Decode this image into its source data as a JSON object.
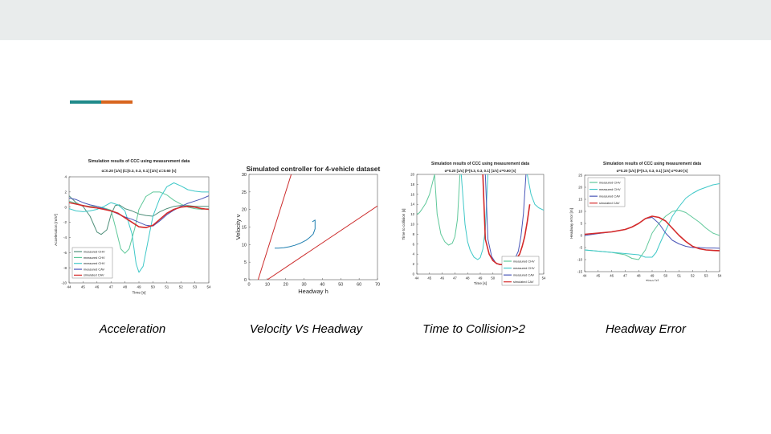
{
  "slide": {
    "captions": [
      "Acceleration",
      "Velocity Vs Headway",
      "Time to Collision>2",
      "Headway Error"
    ],
    "accent_colors": [
      "#1f8a8a",
      "#d8651e"
    ]
  },
  "chart_data": [
    {
      "type": "line",
      "title": "Simulation results of CCC using measurement data",
      "subtitle": "α=0.20 [1/s]   β=[0.3, 0.3, 0.1] [1/s]   σ=0.60 [s]",
      "xlabel": "Time [s]",
      "ylabel": "Acceleration [m/s²]",
      "xlim": [
        44,
        54
      ],
      "ylim": [
        -10,
        4
      ],
      "xticks": [
        "44",
        "45",
        "46",
        "47",
        "48",
        "49",
        "50",
        "51",
        "52",
        "53",
        "54"
      ],
      "yticks": [
        "4",
        "2",
        "0",
        "-2",
        "-4",
        "-6",
        "-8",
        "-10"
      ],
      "legend_position": "bottom-left",
      "series": [
        {
          "name": "measured CHV",
          "color": "#4f8f7a",
          "x": [
            44,
            44.5,
            45,
            45.5,
            46,
            46.3,
            46.7,
            47,
            47.3,
            47.6,
            48,
            48.5,
            49,
            49.5,
            50,
            50.5,
            51,
            51.5,
            52,
            52.5,
            53,
            53.5,
            54
          ],
          "y": [
            1.5,
            0.6,
            0.1,
            -1.2,
            -3.3,
            -3.6,
            -3,
            -1,
            0.2,
            0.3,
            -0.2,
            -0.5,
            -0.9,
            -1.1,
            -1.2,
            -0.6,
            -0.2,
            0.1,
            0.2,
            0.2,
            0.1,
            0.1,
            0.1
          ]
        },
        {
          "name": "measured CHV",
          "color": "#5fc89a",
          "x": [
            44,
            44.5,
            45,
            45.5,
            46,
            46.5,
            47,
            47.3,
            47.7,
            48,
            48.3,
            48.7,
            49,
            49.5,
            50,
            50.5,
            51,
            51.5,
            52,
            52.5,
            53,
            53.5,
            54
          ],
          "y": [
            0.8,
            0.5,
            0.2,
            0.1,
            0.1,
            -0.1,
            -0.4,
            -2.5,
            -5.5,
            -6.1,
            -5.5,
            -2.8,
            -0.3,
            1.4,
            2,
            2,
            1.6,
            0.9,
            0.4,
            0,
            -0.2,
            -0.3,
            -0.2
          ]
        },
        {
          "name": "measured CHV",
          "color": "#3fc8c8",
          "x": [
            44,
            44.5,
            45,
            45.5,
            46,
            46.5,
            47,
            47.5,
            48,
            48.5,
            48.8,
            49,
            49.3,
            49.7,
            50,
            50.5,
            51,
            51.5,
            52,
            52.5,
            53,
            53.5,
            54
          ],
          "y": [
            -0.2,
            -0.5,
            -0.6,
            -0.5,
            -0.3,
            0.1,
            0.6,
            0.3,
            -0.5,
            -3.5,
            -7.5,
            -8.6,
            -7.8,
            -4,
            -1.2,
            1.2,
            2.7,
            3.2,
            2.8,
            2.3,
            2.1,
            2,
            2
          ]
        },
        {
          "name": "measured CAV",
          "color": "#4a56b8",
          "x": [
            44,
            44.5,
            45,
            45.5,
            46,
            46.5,
            47,
            47.5,
            48,
            48.5,
            49,
            49.5,
            50,
            50.5,
            51,
            51.5,
            52,
            52.5,
            53,
            53.5,
            54
          ],
          "y": [
            1.2,
            1,
            0.6,
            0.3,
            0.1,
            -0.2,
            -0.5,
            -0.9,
            -1.3,
            -1.6,
            -2,
            -2.4,
            -2.5,
            -1.8,
            -1,
            -0.4,
            0.1,
            0.5,
            0.8,
            1.1,
            1.5
          ]
        },
        {
          "name": "simulated CAV",
          "color": "#d42a2a",
          "x": [
            44,
            44.5,
            45,
            45.5,
            46,
            46.5,
            47,
            47.5,
            48,
            48.5,
            49,
            49.5,
            50,
            50.5,
            51,
            51.5,
            52,
            52.5,
            53,
            53.5,
            54
          ],
          "y": [
            0.6,
            0.4,
            0.2,
            0,
            -0.1,
            -0.3,
            -0.5,
            -0.8,
            -1.4,
            -2,
            -2.6,
            -2.7,
            -2.4,
            -1.6,
            -0.8,
            -0.3,
            0,
            0.1,
            0,
            -0.2,
            -0.3
          ]
        }
      ]
    },
    {
      "type": "line",
      "title": "Simulated controller for 4-vehicle dataset",
      "xlabel": "Headway h",
      "ylabel": "Velocity v",
      "xlim": [
        0,
        70
      ],
      "ylim": [
        0,
        30
      ],
      "xticks": [
        "0",
        "10",
        "20",
        "30",
        "40",
        "50",
        "60",
        "70"
      ],
      "yticks": [
        "30",
        "25",
        "20",
        "15",
        "10",
        "5",
        "0"
      ],
      "series": [
        {
          "color": "#cc2b2b",
          "x": [
            5,
            23
          ],
          "y": [
            0,
            30
          ]
        },
        {
          "color": "#cc2b2b",
          "x": [
            10,
            70
          ],
          "y": [
            0,
            21
          ]
        },
        {
          "color": "#1f7fb0",
          "x": [
            14,
            16,
            19,
            22,
            25,
            28,
            31,
            33,
            35,
            36,
            36,
            34.5
          ],
          "y": [
            9,
            9,
            9.1,
            9.4,
            9.8,
            10.4,
            11.2,
            12,
            13,
            14.5,
            17,
            16.5
          ]
        }
      ]
    },
    {
      "type": "line",
      "title": "Simulation results of CCC using measurement data",
      "subtitle": "α=0.20 [1/s]   β=[0.3, 0.3, 0.1] [1/s]   σ=0.60 [s]",
      "xlabel": "Time [s]",
      "ylabel": "Time to collision [s]",
      "xlim": [
        44,
        54
      ],
      "ylim": [
        0,
        20
      ],
      "xticks": [
        "44",
        "45",
        "46",
        "47",
        "48",
        "49",
        "50",
        "51",
        "52",
        "53",
        "54"
      ],
      "yticks": [
        "20",
        "18",
        "16",
        "14",
        "12",
        "10",
        "8",
        "6",
        "4",
        "2",
        "0"
      ],
      "legend_position": "bottom-right",
      "series": [
        {
          "name": "measured CHV",
          "color": "#5fc89a",
          "x": [
            44,
            44.2,
            44.4,
            44.7,
            45,
            45.2,
            45.4,
            45.6,
            45.9,
            46.2,
            46.5,
            46.8,
            47.0,
            47.2,
            47.4
          ],
          "y": [
            12,
            12.3,
            13,
            14.2,
            16,
            18,
            20,
            12,
            8,
            6.5,
            5.8,
            6.2,
            7.5,
            11,
            20
          ]
        },
        {
          "name": "measured CHV",
          "color": "#3fc8c8",
          "x": [
            47.5,
            47.8,
            48,
            48.2,
            48.5,
            48.8,
            49,
            49.2,
            49.4,
            49.6
          ],
          "y": [
            20,
            10,
            6.5,
            4.8,
            3.4,
            2.9,
            3.3,
            5,
            9,
            20
          ]
        },
        {
          "name": "measured CAV",
          "color": "#4a56b8",
          "x": [
            49.4,
            49.6,
            49.9,
            50.2,
            50.5,
            50.8,
            51.1,
            51.4,
            51.7,
            52,
            52.2,
            52.4,
            52.6
          ],
          "y": [
            20,
            7,
            3.5,
            2.3,
            1.9,
            1.9,
            2,
            2.3,
            2.9,
            4.6,
            7.5,
            12,
            20
          ]
        },
        {
          "name": "simulated CAV",
          "color": "#d42a2a",
          "x": [
            49.2,
            49.4,
            49.7,
            50,
            50.3,
            50.6,
            50.9,
            51.2,
            51.5,
            51.8,
            52.1,
            52.3,
            52.5,
            52.7,
            52.9
          ],
          "y": [
            20,
            7,
            4,
            2.7,
            2.1,
            1.9,
            1.9,
            2,
            2.3,
            2.9,
            4,
            5.5,
            7.5,
            10.5,
            14
          ]
        },
        {
          "color": "#3fc8c8",
          "x": [
            52.7,
            53,
            53.3,
            53.6,
            54
          ],
          "y": [
            20,
            16,
            14,
            13.3,
            12.8
          ]
        }
      ]
    },
    {
      "type": "line",
      "title": "Simulation results of CCC using measurement data",
      "subtitle": "α=0.20 [1/s]   β=[0.3, 0.3, 0.1] [1/s]   σ=0.60 [s]",
      "xlabel": "Time [s]",
      "ylabel": "Headway error [m]",
      "xlim": [
        44,
        54
      ],
      "ylim": [
        -15,
        25
      ],
      "xticks": [
        "44",
        "45",
        "46",
        "47",
        "48",
        "49",
        "50",
        "51",
        "52",
        "53",
        "54"
      ],
      "yticks": [
        "25",
        "20",
        "15",
        "10",
        "5",
        "0",
        "-5",
        "-10",
        "-15"
      ],
      "legend_position": "top-left",
      "series": [
        {
          "name": "measured CHV",
          "color": "#5fc89a",
          "x": [
            44,
            45,
            46,
            47,
            47.5,
            48,
            48.5,
            49,
            49.5,
            50,
            50.5,
            51,
            51.5,
            52,
            52.5,
            53,
            53.5,
            54
          ],
          "y": [
            -6,
            -6.5,
            -7,
            -8,
            -9.5,
            -10,
            -6,
            1,
            5,
            8,
            10,
            10.5,
            9.5,
            7.5,
            5.5,
            3,
            1,
            0
          ]
        },
        {
          "name": "measured CHV",
          "color": "#3fc8c8",
          "x": [
            44,
            45,
            46,
            47,
            48,
            48.5,
            49,
            49.3,
            49.6,
            50,
            50.5,
            51,
            51.5,
            52,
            52.5,
            53,
            53.5,
            54
          ],
          "y": [
            -6,
            -6.5,
            -7,
            -7.5,
            -8,
            -9,
            -9,
            -7,
            -3,
            2,
            8,
            12,
            15.5,
            17.5,
            19,
            20,
            21,
            21.5
          ]
        },
        {
          "name": "measured CAV",
          "color": "#4a56b8",
          "x": [
            44,
            45,
            46,
            47,
            47.5,
            48,
            48.5,
            49,
            49.5,
            50,
            50.5,
            51,
            51.5,
            52,
            52.5,
            53,
            53.5,
            54
          ],
          "y": [
            0,
            0.8,
            1.5,
            2.5,
            3.5,
            5,
            7,
            7.5,
            5,
            1,
            -2,
            -3.5,
            -4.5,
            -5,
            -5,
            -5.2,
            -5.2,
            -5.3
          ]
        },
        {
          "name": "simulated CAV",
          "color": "#d42a2a",
          "x": [
            44,
            45,
            46,
            47,
            47.5,
            48,
            48.5,
            49,
            49.5,
            50,
            50.5,
            51,
            51.5,
            52,
            52.5,
            53,
            53.5,
            54
          ],
          "y": [
            0.5,
            1,
            1.5,
            2.5,
            3.5,
            5,
            7,
            8,
            7.5,
            6,
            3,
            0,
            -2.5,
            -4.5,
            -5.5,
            -6,
            -6.2,
            -6.3
          ]
        }
      ]
    }
  ]
}
